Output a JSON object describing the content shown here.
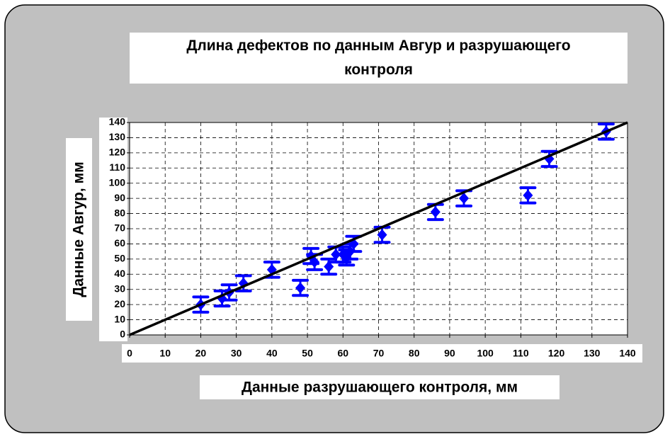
{
  "chart_data": {
    "type": "scatter",
    "title": "Длина дефектов по данным Авгур и разрушающего контроля",
    "x_label": "Данные разрушающего контроля, мм",
    "y_label": "Данные Авгур, мм",
    "x": [
      20,
      26,
      28,
      32,
      40,
      48,
      51,
      52,
      56,
      58,
      60,
      61,
      62,
      63,
      71,
      86,
      94,
      112,
      118,
      134
    ],
    "values": [
      20,
      24,
      28,
      34,
      43,
      31,
      52,
      48,
      45,
      53,
      53,
      51,
      55,
      60,
      66,
      81,
      90,
      92,
      116,
      134
    ],
    "errors": [
      5,
      5,
      5,
      5,
      5,
      5,
      5,
      5,
      5,
      5,
      5,
      5,
      5,
      5,
      5,
      5,
      5,
      5,
      5,
      5
    ],
    "color": "#0000ff",
    "line": {
      "x": [
        0,
        140
      ],
      "y": [
        0,
        140
      ],
      "color": "#000000"
    },
    "xlim": [
      0,
      140
    ],
    "ylim": [
      0,
      140
    ],
    "xticks": [
      0,
      10,
      20,
      30,
      40,
      50,
      60,
      70,
      80,
      90,
      100,
      110,
      120,
      130,
      140
    ],
    "yticks": [
      0,
      10,
      20,
      30,
      40,
      50,
      60,
      70,
      80,
      90,
      100,
      110,
      120,
      130,
      140
    ],
    "grid": true
  }
}
